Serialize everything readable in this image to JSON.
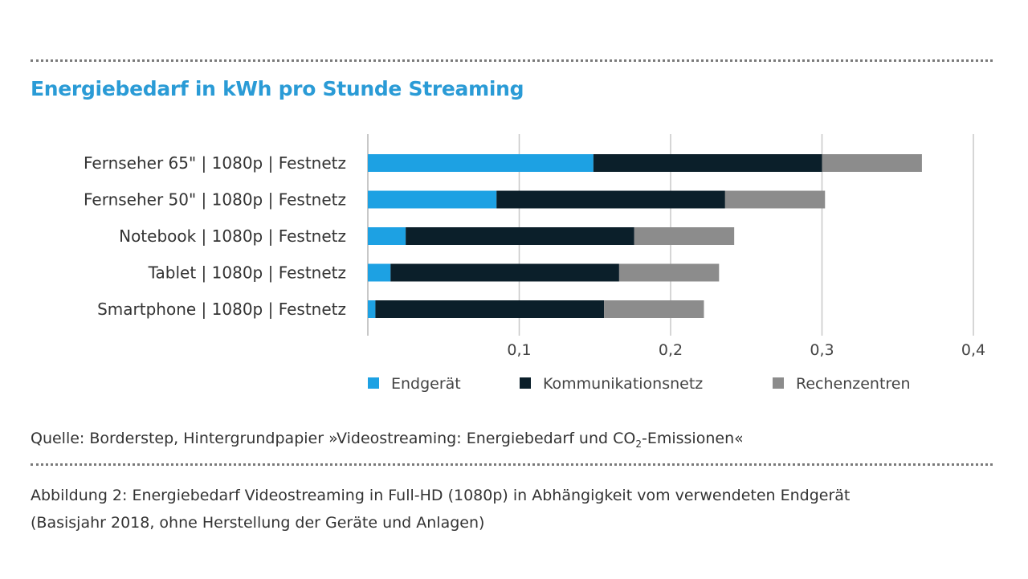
{
  "chart_data": {
    "type": "bar",
    "orientation": "horizontal",
    "stacked": true,
    "title": "Energiebedarf in kWh pro Stunde Streaming",
    "categories": [
      "Fernseher 65\" | 1080p | Festnetz",
      "Fernseher 50\" | 1080p | Festnetz",
      "Notebook | 1080p | Festnetz",
      "Tablet | 1080p | Festnetz",
      "Smartphone | 1080p | Festnetz"
    ],
    "series": [
      {
        "name": "Endgerät",
        "color": "#1da1e3",
        "values": [
          0.149,
          0.085,
          0.025,
          0.015,
          0.005
        ]
      },
      {
        "name": "Kommunikationsnetz",
        "color": "#0b1f2a",
        "values": [
          0.151,
          0.151,
          0.151,
          0.151,
          0.151
        ]
      },
      {
        "name": "Rechenzentren",
        "color": "#8c8c8c",
        "values": [
          0.066,
          0.066,
          0.066,
          0.066,
          0.066
        ]
      }
    ],
    "xlim": [
      0,
      0.4
    ],
    "xticks": [
      0.1,
      0.2,
      0.3,
      0.4
    ],
    "xtick_labels": [
      "0,1",
      "0,2",
      "0,3",
      "0,4"
    ],
    "xlabel": "",
    "ylabel": "",
    "grid": "vertical",
    "legend_position": "bottom"
  },
  "source": {
    "prefix": "Quelle: Borderstep, Hintergrundpapier »Videostreaming: Energiebedarf und CO",
    "subscript": "2",
    "suffix": "-Emissionen«"
  },
  "caption": {
    "line1": "Abbildung 2: Energiebedarf Videostreaming in Full-HD (1080p) in Abhängigkeit vom verwendeten Endgerät",
    "line2": "(Basisjahr 2018, ohne Herstellung der Geräte und Anlagen)"
  }
}
